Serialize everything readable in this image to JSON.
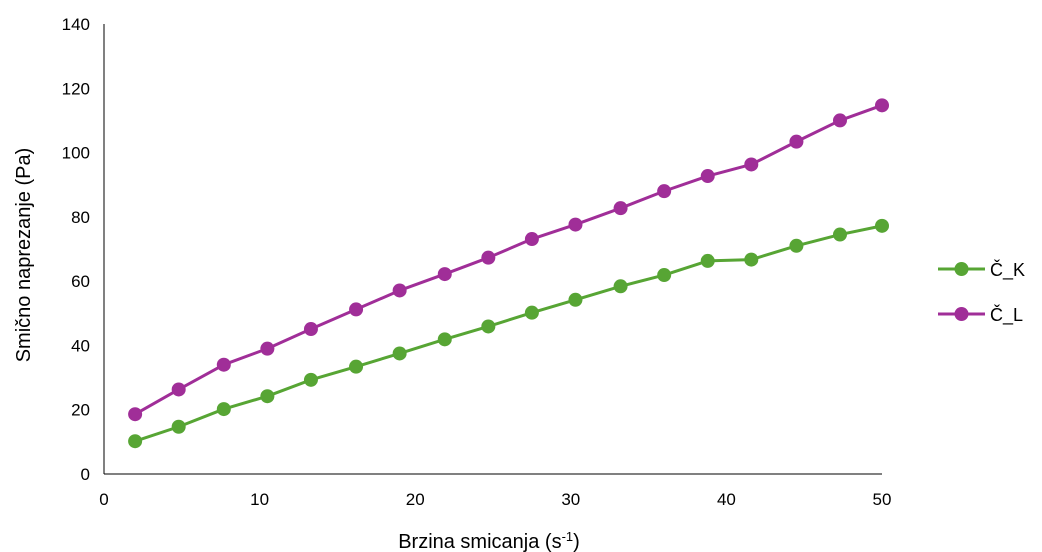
{
  "chart_data": {
    "type": "line",
    "title": "",
    "xlabel": "Brzina smicanja (s",
    "xlabel_sup": "-1",
    "xlabel_suffix": ")",
    "ylabel": "Smično naprezanje (Pa)",
    "xlim": [
      0,
      50
    ],
    "ylim": [
      0,
      140
    ],
    "xticks": [
      0,
      10,
      20,
      30,
      40,
      50
    ],
    "yticks": [
      0,
      20,
      40,
      60,
      80,
      100,
      120,
      140
    ],
    "grid": false,
    "legend_position": "right",
    "x": [
      2,
      4.8,
      7.7,
      10.5,
      13.3,
      16.2,
      19,
      21.9,
      24.7,
      27.5,
      30.3,
      33.2,
      36,
      38.8,
      41.6,
      44.5,
      47.3,
      50
    ],
    "series": [
      {
        "name": "Č_K",
        "color": "#57a534",
        "values": [
          10.2,
          14.7,
          20.2,
          24.2,
          29.3,
          33.4,
          37.5,
          41.9,
          45.9,
          50.2,
          54.2,
          58.4,
          61.9,
          66.3,
          66.7,
          71,
          74.5,
          77.2
        ]
      },
      {
        "name": "Č_L",
        "color": "#a02e98",
        "values": [
          18.6,
          26.3,
          34,
          39,
          45.1,
          51.2,
          57.1,
          62.2,
          67.3,
          73.1,
          77.6,
          82.7,
          88,
          92.7,
          96.3,
          103.4,
          110,
          114.7
        ]
      }
    ]
  }
}
